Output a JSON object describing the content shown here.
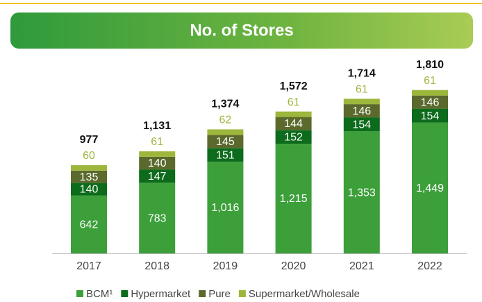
{
  "chart_data": {
    "type": "stacked-bar",
    "title": "No. of Stores",
    "categories": [
      "2017",
      "2018",
      "2019",
      "2020",
      "2021",
      "2022"
    ],
    "series": [
      {
        "name": "BCM¹",
        "color": "#3c9f3a",
        "values": [
          642,
          783,
          1016,
          1215,
          1353,
          1449
        ],
        "value_labels": [
          "642",
          "783",
          "1,016",
          "1,215",
          "1,353",
          "1,449"
        ]
      },
      {
        "name": "Hypermarket",
        "color": "#0d6b1c",
        "values": [
          140,
          147,
          151,
          152,
          154,
          154
        ]
      },
      {
        "name": "Pure",
        "color": "#5b6a2c",
        "values": [
          135,
          140,
          145,
          144,
          146,
          146
        ]
      },
      {
        "name": "Supermarket/Wholesale",
        "color": "#9cb73c",
        "values": [
          60,
          61,
          62,
          61,
          61,
          61
        ]
      }
    ],
    "totals": [
      977,
      1131,
      1374,
      1572,
      1714,
      1810
    ],
    "total_labels": [
      "977",
      "1,131",
      "1,374",
      "1,572",
      "1,714",
      "1,810"
    ]
  }
}
